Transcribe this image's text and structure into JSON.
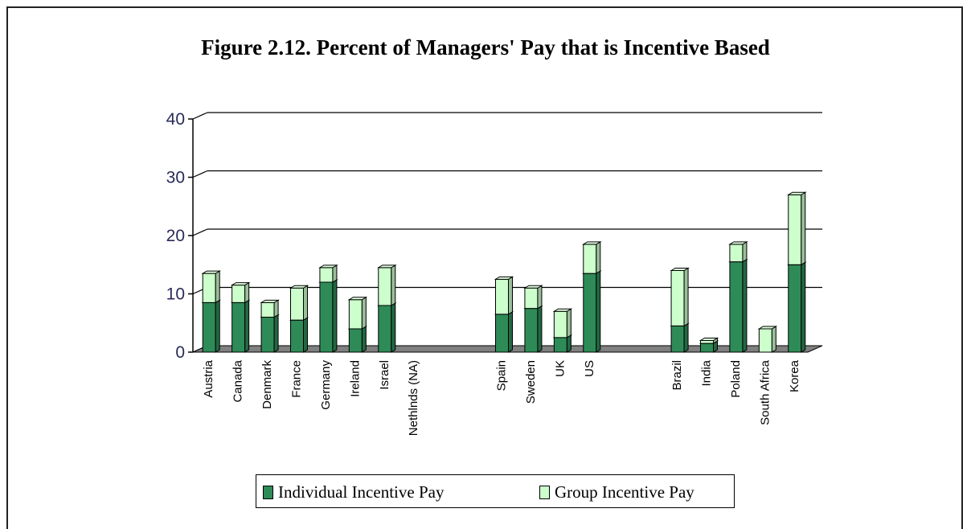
{
  "chart_data": {
    "type": "bar",
    "stacked": true,
    "title": "Figure 2.12. Percent of Managers' Pay that is Incentive Based",
    "xlabel": "",
    "ylabel": "",
    "ylim": [
      0,
      40
    ],
    "yticks": [
      0,
      10,
      20,
      30,
      40
    ],
    "grid": true,
    "legend_position": "bottom",
    "categories": [
      "Austria",
      "Canada",
      "Denmark",
      "France",
      "Germany",
      "Ireland",
      "Israel",
      "Nethlnds (NA)",
      "",
      "",
      "Spain",
      "Sweden",
      "UK",
      "US",
      "",
      "",
      "Brazil",
      "India",
      "Poland",
      "South Africa",
      "Korea"
    ],
    "series": [
      {
        "name": "Individual Incentive Pay",
        "color": "#2e8b57",
        "values": [
          8.5,
          8.5,
          6,
          5.5,
          12,
          4,
          8,
          0,
          0,
          0,
          6.5,
          7.5,
          2.5,
          13.5,
          0,
          0,
          4.5,
          1.5,
          15.5,
          0,
          15
        ]
      },
      {
        "name": "Group Incentive Pay",
        "color": "#ccffcc",
        "values": [
          5,
          3,
          2.5,
          5.5,
          2.5,
          5,
          6.5,
          0,
          0,
          0,
          6,
          3.5,
          4.5,
          5,
          0,
          0,
          9.5,
          0.5,
          3,
          4,
          12
        ]
      }
    ]
  }
}
